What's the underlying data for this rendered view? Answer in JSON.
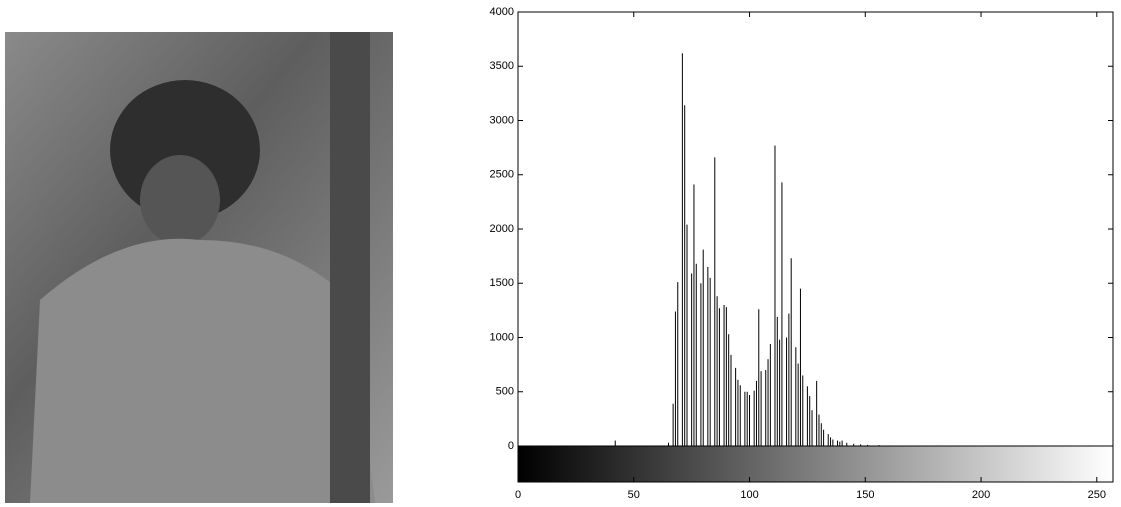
{
  "chart_data": {
    "type": "bar",
    "color": "#000000",
    "x": [
      42,
      65,
      67,
      68,
      69,
      71,
      72,
      73,
      75,
      76,
      77,
      79,
      80,
      82,
      83,
      85,
      86,
      87,
      89,
      90,
      91,
      92,
      94,
      95,
      96,
      98,
      99,
      100,
      102,
      103,
      104,
      105,
      107,
      108,
      109,
      111,
      112,
      113,
      114,
      116,
      117,
      118,
      120,
      121,
      122,
      123,
      125,
      126,
      127,
      129,
      130,
      131,
      132,
      134,
      135,
      136,
      138,
      139,
      140,
      142,
      145,
      148,
      151,
      156,
      160,
      181
    ],
    "values": [
      50,
      30,
      390,
      1240,
      1510,
      3620,
      3140,
      2040,
      1590,
      2410,
      1680,
      1500,
      1810,
      1650,
      1550,
      2660,
      1380,
      1270,
      1300,
      1280,
      1030,
      840,
      720,
      610,
      560,
      500,
      500,
      470,
      510,
      600,
      1260,
      690,
      700,
      800,
      940,
      2770,
      1190,
      980,
      2430,
      1000,
      1220,
      1730,
      910,
      760,
      1450,
      650,
      550,
      460,
      330,
      600,
      290,
      210,
      150,
      110,
      80,
      60,
      50,
      40,
      50,
      30,
      20,
      15,
      10,
      8,
      5,
      5
    ],
    "xlim": [
      0,
      257
    ],
    "ylim": [
      0,
      4000
    ],
    "xticks": [
      0,
      50,
      100,
      150,
      200,
      250
    ],
    "yticks": [
      0,
      500,
      1000,
      1500,
      2000,
      2500,
      3000,
      3500,
      4000
    ]
  }
}
